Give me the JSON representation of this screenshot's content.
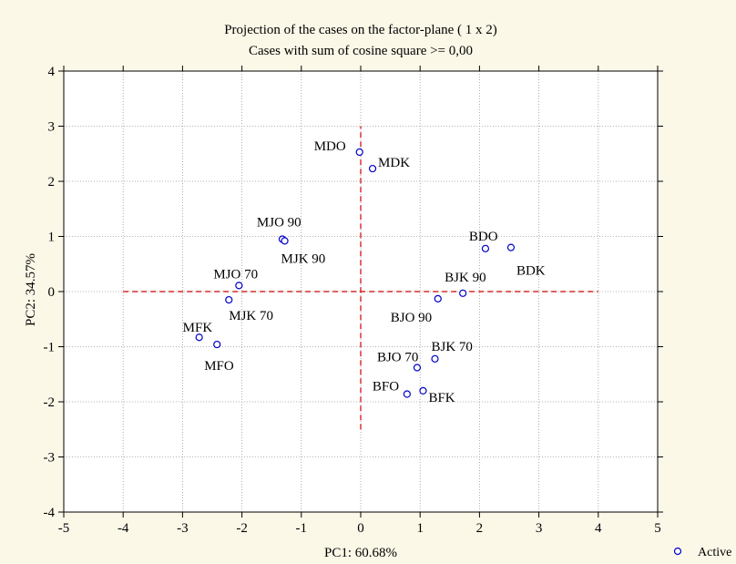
{
  "chart_data": {
    "type": "scatter",
    "title": "Projection of the cases on the factor-plane (  1 x 2)",
    "subtitle": "Cases with sum of cosine square >=  0,00",
    "xlabel": "PC1: 60.68%",
    "ylabel": "PC2: 34.57%",
    "xlim": [
      -5,
      5
    ],
    "ylim": [
      -4,
      4
    ],
    "xticks": [
      -5,
      -4,
      -3,
      -2,
      -1,
      0,
      1,
      2,
      3,
      4,
      5
    ],
    "yticks": [
      -4,
      -3,
      -2,
      -1,
      0,
      1,
      2,
      3,
      4
    ],
    "grid": true,
    "legend_position": "bottom-right",
    "marker_color": "#0000cc",
    "reference_line_color": "#cc0000",
    "reference_lines": {
      "horizontal": {
        "y": 0,
        "x_from": -4,
        "x_to": 4
      },
      "vertical": {
        "x": 0,
        "y_from": -2.5,
        "y_to": 3
      }
    },
    "series": [
      {
        "name": "Active",
        "points": [
          {
            "label": "MDO",
            "x": -0.02,
            "y": 2.53
          },
          {
            "label": "MDK",
            "x": 0.2,
            "y": 2.23
          },
          {
            "label": "MJO 90",
            "x": -1.32,
            "y": 0.95
          },
          {
            "label": "MJK 90",
            "x": -1.28,
            "y": 0.92
          },
          {
            "label": "MJO 70",
            "x": -2.05,
            "y": 0.11
          },
          {
            "label": "MJK 70",
            "x": -2.22,
            "y": -0.15
          },
          {
            "label": "MFK",
            "x": -2.72,
            "y": -0.83
          },
          {
            "label": "MFO",
            "x": -2.42,
            "y": -0.96
          },
          {
            "label": "BDO",
            "x": 2.1,
            "y": 0.78
          },
          {
            "label": "BDK",
            "x": 2.53,
            "y": 0.8
          },
          {
            "label": "BJK 90",
            "x": 1.72,
            "y": -0.03
          },
          {
            "label": "BJO 90",
            "x": 1.3,
            "y": -0.13
          },
          {
            "label": "BJO 70",
            "x": 0.95,
            "y": -1.38
          },
          {
            "label": "BJK 70",
            "x": 1.25,
            "y": -1.22
          },
          {
            "label": "BFO",
            "x": 0.78,
            "y": -1.86
          },
          {
            "label": "BFK",
            "x": 1.05,
            "y": -1.8
          }
        ]
      }
    ]
  }
}
